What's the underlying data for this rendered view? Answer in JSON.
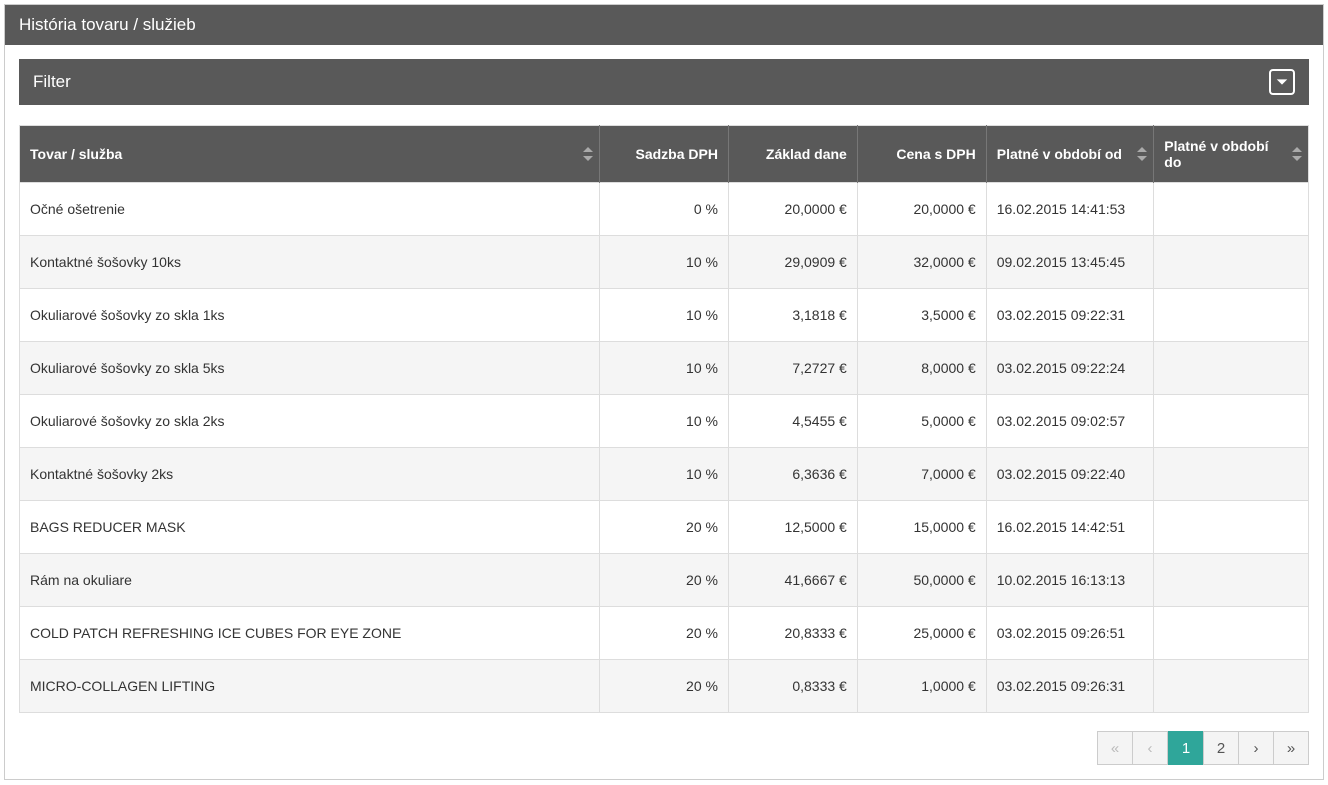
{
  "header": {
    "title": "História tovaru / služieb"
  },
  "filter": {
    "label": "Filter"
  },
  "table": {
    "columns": {
      "name": "Tovar / služba",
      "vat": "Sadzba DPH",
      "base": "Základ dane",
      "price": "Cena s DPH",
      "from": "Platné v období od",
      "to": "Platné v období do"
    },
    "rows": [
      {
        "name": "Očné ošetrenie",
        "vat": "0 %",
        "base": "20,0000 €",
        "price": "20,0000 €",
        "from": "16.02.2015 14:41:53",
        "to": ""
      },
      {
        "name": "Kontaktné šošovky 10ks",
        "vat": "10 %",
        "base": "29,0909 €",
        "price": "32,0000 €",
        "from": "09.02.2015 13:45:45",
        "to": ""
      },
      {
        "name": "Okuliarové šošovky zo skla 1ks",
        "vat": "10 %",
        "base": "3,1818 €",
        "price": "3,5000 €",
        "from": "03.02.2015 09:22:31",
        "to": ""
      },
      {
        "name": "Okuliarové šošovky zo skla 5ks",
        "vat": "10 %",
        "base": "7,2727 €",
        "price": "8,0000 €",
        "from": "03.02.2015 09:22:24",
        "to": ""
      },
      {
        "name": "Okuliarové šošovky zo skla 2ks",
        "vat": "10 %",
        "base": "4,5455 €",
        "price": "5,0000 €",
        "from": "03.02.2015 09:02:57",
        "to": ""
      },
      {
        "name": "Kontaktné šošovky 2ks",
        "vat": "10 %",
        "base": "6,3636 €",
        "price": "7,0000 €",
        "from": "03.02.2015 09:22:40",
        "to": ""
      },
      {
        "name": "BAGS REDUCER MASK",
        "vat": "20 %",
        "base": "12,5000 €",
        "price": "15,0000 €",
        "from": "16.02.2015 14:42:51",
        "to": ""
      },
      {
        "name": "Rám na okuliare",
        "vat": "20 %",
        "base": "41,6667 €",
        "price": "50,0000 €",
        "from": "10.02.2015 16:13:13",
        "to": ""
      },
      {
        "name": "COLD PATCH REFRESHING ICE CUBES FOR EYE ZONE",
        "vat": "20 %",
        "base": "20,8333 €",
        "price": "25,0000 €",
        "from": "03.02.2015 09:26:51",
        "to": ""
      },
      {
        "name": "MICRO-COLLAGEN LIFTING",
        "vat": "20 %",
        "base": "0,8333 €",
        "price": "1,0000 €",
        "from": "03.02.2015 09:26:31",
        "to": ""
      }
    ]
  },
  "pagination": {
    "first": "«",
    "prev": "‹",
    "pages": [
      "1",
      "2"
    ],
    "active": "1",
    "next": "›",
    "last": "»"
  },
  "colors": {
    "header_bg": "#595959",
    "accent": "#2fa69a",
    "row_alt": "#f5f5f5",
    "border": "#dddddd"
  }
}
